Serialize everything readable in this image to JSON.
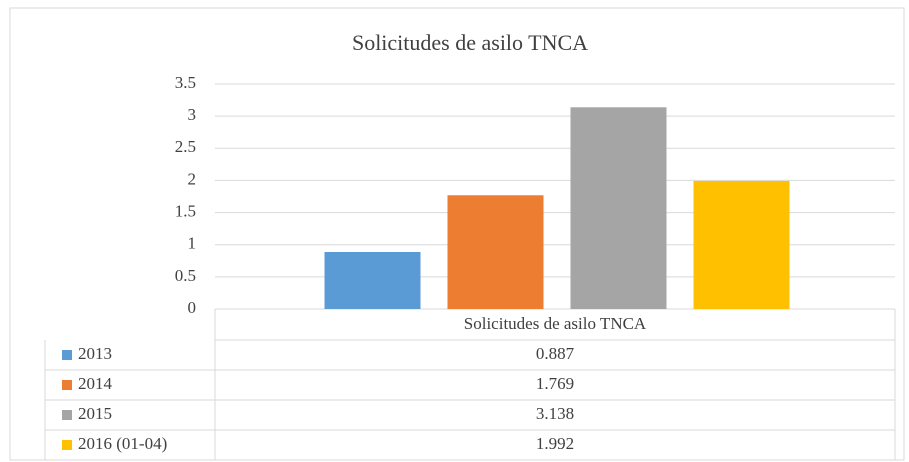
{
  "chart_data": {
    "type": "bar",
    "title": "Solicitudes de asilo TNCA",
    "categories": [
      "Solicitudes de asilo TNCA"
    ],
    "series": [
      {
        "name": "2013",
        "color": "#5b9bd5",
        "values": [
          0.887
        ]
      },
      {
        "name": "2014",
        "color": "#ed7d31",
        "values": [
          1.769
        ]
      },
      {
        "name": "2015",
        "color": "#a5a5a5",
        "values": [
          3.138
        ]
      },
      {
        "name": "2016 (01-04)",
        "color": "#ffc000",
        "values": [
          1.992
        ]
      }
    ],
    "ylim": [
      0,
      3.5
    ],
    "yticks": [
      0,
      0.5,
      1,
      1.5,
      2,
      2.5,
      3,
      3.5
    ],
    "grid": true,
    "data_table": true
  }
}
